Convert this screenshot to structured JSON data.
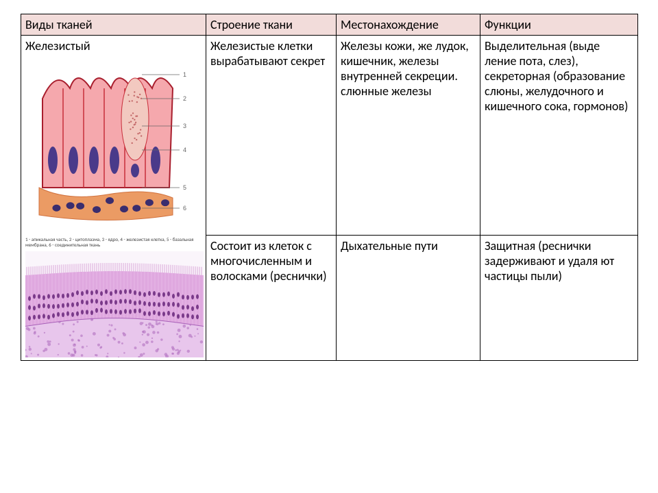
{
  "table": {
    "headers": [
      "Виды тканей",
      "Строение ткани",
      "Местонахождение",
      "Функции"
    ],
    "rows": [
      {
        "type_label": "Железистый",
        "structure": "Железистые клетки вырабатывают секрет",
        "location": "Железы кожи, же лудок, кишечник, железы внутренней секреции. слюнные железы",
        "function": "Выделительная (выде ление пота, слез), секреторная (образование слюны, желудочного и кишечного сока, гормонов)"
      },
      {
        "type_label": "",
        "structure": "Состоит из клеток с многочисленным и волосками (реснички)",
        "location": "Дыхательные пути",
        "function": "Защитная (реснички задерживают и удаля ют частицы пыли)"
      }
    ],
    "caption1": "1 - апикальная часть, 2 - цитоплазма, 3 - ядро, 4 - железистая клетка, 5 - базальная мембрана, 6 - соединительная ткань"
  },
  "hist1": {
    "bg": "#ffffff",
    "cell_fill": "#f5a8ad",
    "cell_stroke": "#c72e3a",
    "apical_stroke": "#a81e2d",
    "secretory_fill": "#f2c9c0",
    "secretory_dots": "#c46a6a",
    "nucleus_fill": "#4a3a8a",
    "base_fill": "#e88a4a",
    "base_stroke": "#c95a1e",
    "conn_nuclei": "#3a2d6e",
    "label_color": "#666666",
    "label_nums": [
      "1",
      "2",
      "3",
      "4",
      "5",
      "6"
    ]
  },
  "hist2": {
    "bg": "#faf5fb",
    "cilia": "#d9a6d9",
    "epithelium_top": "#e7b8e7",
    "epithelium_body": "#dca0dc",
    "nuclei": "#7a3a8a",
    "basement": "#a860b8",
    "connective": "#e8c6ec",
    "conn_dots": "#b070c0"
  }
}
